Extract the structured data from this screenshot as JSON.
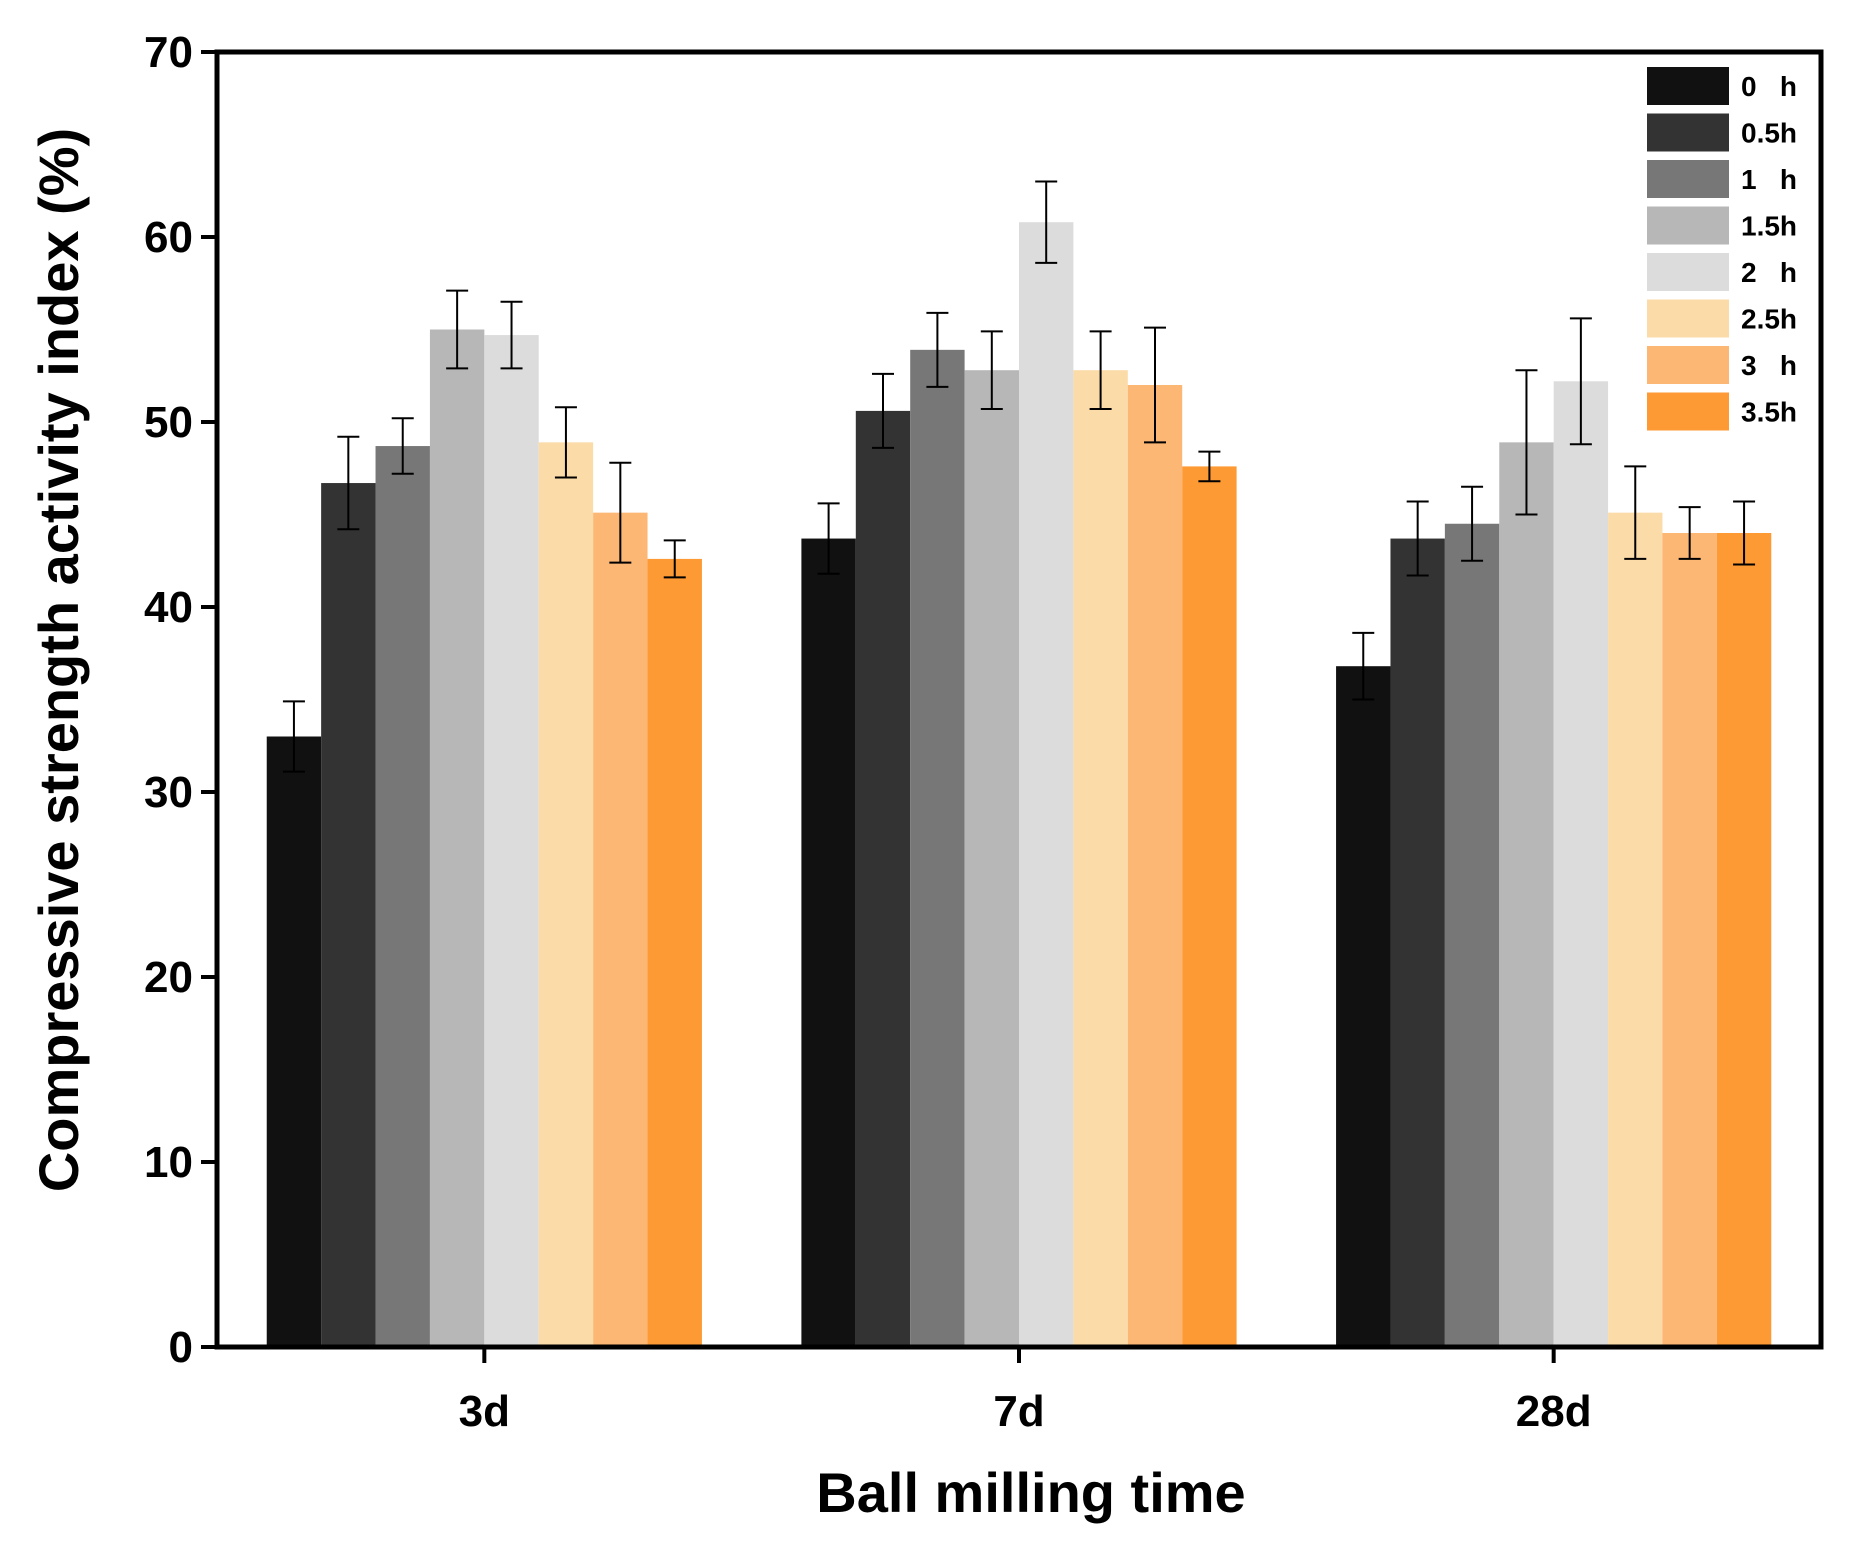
{
  "chart_data": {
    "type": "bar",
    "title": "",
    "xlabel": "Ball milling time",
    "ylabel": "Compressive strength activity index (%)",
    "ylim": [
      0,
      70
    ],
    "yticks": [
      0,
      10,
      20,
      30,
      40,
      50,
      60,
      70
    ],
    "grid": false,
    "legend_position": "top-right",
    "categories": [
      "3d",
      "7d",
      "28d"
    ],
    "series": [
      {
        "name": "0   h",
        "color": "#111111",
        "values": [
          33.0,
          43.7,
          36.8
        ],
        "errors": [
          1.9,
          1.9,
          1.8
        ]
      },
      {
        "name": "0.5h",
        "color": "#333333",
        "values": [
          46.7,
          50.6,
          43.7
        ],
        "errors": [
          2.5,
          2.0,
          2.0
        ]
      },
      {
        "name": "1   h",
        "color": "#777777",
        "values": [
          48.7,
          53.9,
          44.5
        ],
        "errors": [
          1.5,
          2.0,
          2.0
        ]
      },
      {
        "name": "1.5h",
        "color": "#b7b7b7",
        "values": [
          55.0,
          52.8,
          48.9
        ],
        "errors": [
          2.1,
          2.1,
          3.9
        ]
      },
      {
        "name": "2   h",
        "color": "#dcdcdc",
        "values": [
          54.7,
          60.8,
          52.2
        ],
        "errors": [
          1.8,
          2.2,
          3.4
        ]
      },
      {
        "name": "2.5h",
        "color": "#fbdba8",
        "values": [
          48.9,
          52.8,
          45.1
        ],
        "errors": [
          1.9,
          2.1,
          2.5
        ]
      },
      {
        "name": "3   h",
        "color": "#fdb775",
        "values": [
          45.1,
          52.0,
          44.0
        ],
        "errors": [
          2.7,
          3.1,
          1.4
        ]
      },
      {
        "name": "3.5h",
        "color": "#fd9a34",
        "values": [
          42.6,
          47.6,
          44.0
        ],
        "errors": [
          1.0,
          0.8,
          1.7
        ]
      }
    ]
  }
}
